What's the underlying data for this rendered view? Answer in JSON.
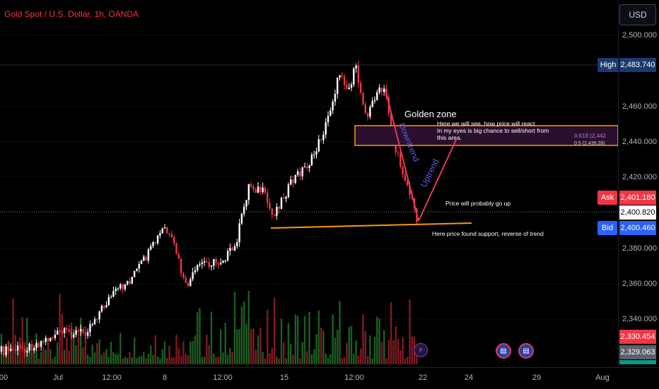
{
  "symbol_title": "Gold Spot / U.S. Dollar, 1h, OANDA",
  "currency_button": "USD",
  "price_axis": {
    "ticks": [
      "2,500.000",
      "2,460.000",
      "2,440.000",
      "2,420.000",
      "2,380.000",
      "2,360.000",
      "2,340.000"
    ]
  },
  "time_axis": {
    "ticks": [
      "00",
      "Jul",
      "12:00",
      "8",
      "12:00",
      "15",
      "12:00",
      "22",
      "24",
      "29",
      "Aug"
    ]
  },
  "price_tags": {
    "high_label": "High",
    "high_value": "2,483.740",
    "ask_label": "Ask",
    "ask_value": "2,401.180",
    "last_value": "2,400.820",
    "bid_label": "Bid",
    "bid_value": "2,400.460",
    "tag_red": "2,330.454",
    "tag_gray": "2,329.063"
  },
  "annotations": {
    "golden_zone": "Golden zone",
    "sell_note_1": "Here we will see, how price will react",
    "sell_note_2": "In my eyes is big chance to sell/short from",
    "sell_note_3": "this area.",
    "downtrend": "Downtrend",
    "uptrend": "Uptrend",
    "price_up": "Price will probably go up",
    "support": "Here price found support, reverse of trend"
  },
  "colors": {
    "bull": "#ffffff",
    "bear": "#f23645",
    "vol_bull": "#1b5e20",
    "vol_bear": "#801922",
    "zone_border": "#ff9800",
    "zone_fill": "#2a0f2e",
    "trend_line": "#ff9800",
    "down_line": "#e03a58",
    "trend_text": "#5b5ee8"
  },
  "icons": {
    "lightning": "lightning-icon",
    "flag1": "us-flag-icon",
    "flag2": "us-flag-icon"
  }
}
